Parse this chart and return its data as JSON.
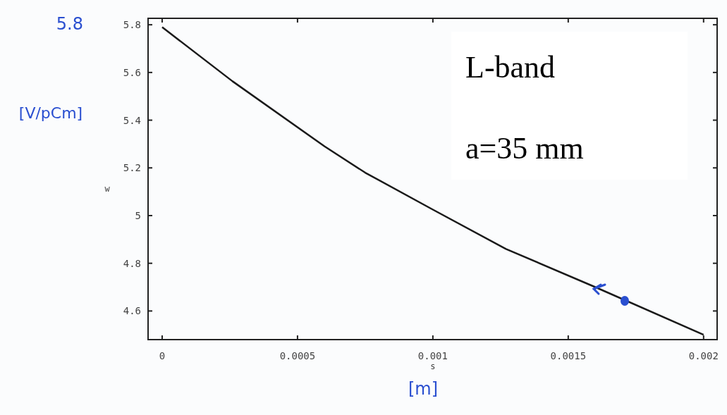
{
  "chart_data": {
    "type": "line",
    "xlabel": "s",
    "ylabel": "w",
    "x": [
      0,
      0.00026,
      0.0006,
      0.00075,
      0.001,
      0.00127,
      0.0016,
      0.002
    ],
    "series": [
      {
        "color": "#1a1a1a",
        "values": [
          5.79,
          5.563,
          5.29,
          5.18,
          5.025,
          4.86,
          4.7,
          4.5
        ]
      }
    ],
    "xlim": [
      -5.2e-05,
      0.00205
    ],
    "ylim": [
      4.48,
      5.827
    ],
    "xticks": [
      0,
      0.0005,
      0.001,
      0.0015,
      0.002
    ],
    "yticks": [
      5.8,
      5.6,
      5.4,
      5.2,
      5,
      4.8,
      4.6
    ],
    "grid": false,
    "marker": "none",
    "line_style": "solid",
    "annotations": [
      "L-band",
      "a=35 mm",
      "5.8",
      "[V/pCm]",
      "[m]"
    ]
  }
}
